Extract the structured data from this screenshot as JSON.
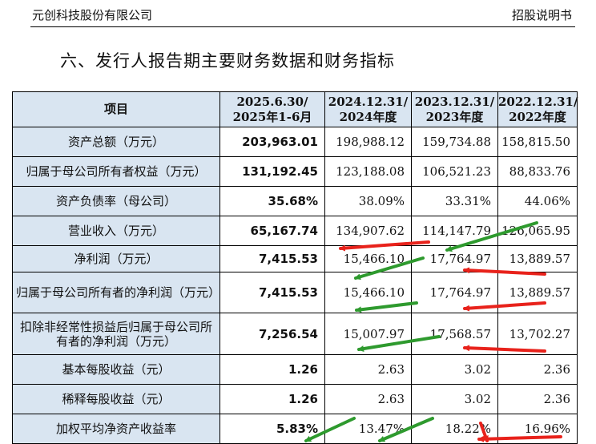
{
  "header": {
    "company": "元创科技股份有限公司",
    "doc_type": "招股说明书"
  },
  "section_title": "六、发行人报告期主要财务数据和财务指标",
  "table": {
    "columns": [
      {
        "line1": "项目",
        "line2": ""
      },
      {
        "line1": "2025.6.30/",
        "line2": "2025年1-6月"
      },
      {
        "line1": "2024.12.31/",
        "line2": "2024年度"
      },
      {
        "line1": "2023.12.31/",
        "line2": "2023年度"
      },
      {
        "line1": "2022.12.31/",
        "line2": "2022年度"
      }
    ],
    "rows": [
      {
        "item": "资产总额（万元）",
        "v2025": "203,963.01",
        "v2024": "198,988.12",
        "v2023": "159,734.88",
        "v2022": "158,815.50"
      },
      {
        "item": "归属于母公司所有者权益（万元）",
        "v2025": "131,192.45",
        "v2024": "123,188.08",
        "v2023": "106,521.23",
        "v2022": "88,833.76"
      },
      {
        "item": "资产负债率（母公司）",
        "v2025": "35.68%",
        "v2024": "38.09%",
        "v2023": "33.31%",
        "v2022": "44.06%"
      },
      {
        "item": "营业收入（万元）",
        "v2025": "65,167.74",
        "v2024": "134,907.62",
        "v2023": "114,147.79",
        "v2022": "126,065.95"
      },
      {
        "item": "净利润（万元）",
        "v2025": "7,415.53",
        "v2024": "15,466.10",
        "v2023": "17,764.97",
        "v2022": "13,889.57"
      },
      {
        "item": "归属于母公司所有者的净利润（万元）",
        "v2025": "7,415.53",
        "v2024": "15,466.10",
        "v2023": "17,764.97",
        "v2022": "13,889.57"
      },
      {
        "item": "扣除非经常性损益后归属于母公司所有者的净利润（万元）",
        "v2025": "7,256.54",
        "v2024": "15,007.97",
        "v2023": "17,568.57",
        "v2022": "13,702.27"
      },
      {
        "item": "基本每股收益（元）",
        "v2025": "1.26",
        "v2024": "2.63",
        "v2023": "3.02",
        "v2022": "2.36"
      },
      {
        "item": "稀释每股收益（元）",
        "v2025": "1.26",
        "v2024": "2.63",
        "v2023": "3.02",
        "v2022": "2.36"
      },
      {
        "item": "加权平均净资产收益率",
        "v2025": "5.83%",
        "v2024": "13.47%",
        "v2023": "18.22%",
        "v2022": "16.96%"
      }
    ]
  },
  "arrow_colors": {
    "up": "#2e9a2e",
    "down": "#e8221b"
  }
}
